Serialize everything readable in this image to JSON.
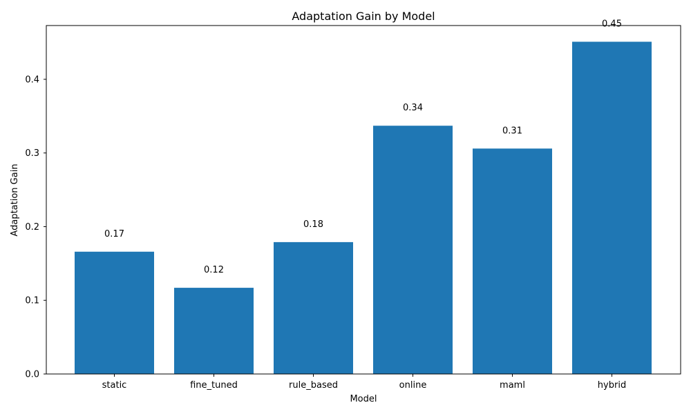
{
  "chart_data": {
    "type": "bar",
    "title": "Adaptation Gain by Model",
    "xlabel": "Model",
    "ylabel": "Adaptation Gain",
    "categories": [
      "static",
      "fine_tuned",
      "rule_based",
      "online",
      "maml",
      "hybrid"
    ],
    "values": [
      0.166,
      0.117,
      0.179,
      0.337,
      0.306,
      0.451
    ],
    "data_labels": [
      "0.17",
      "0.12",
      "0.18",
      "0.34",
      "0.31",
      "0.45"
    ],
    "ylim": [
      0,
      0.473
    ],
    "yticks": [
      0.0,
      0.1,
      0.2,
      0.3,
      0.4
    ],
    "ytick_labels": [
      "0.0",
      "0.1",
      "0.2",
      "0.3",
      "0.4"
    ],
    "bar_color": "#1f77b4",
    "grid": false,
    "legend": "none"
  }
}
